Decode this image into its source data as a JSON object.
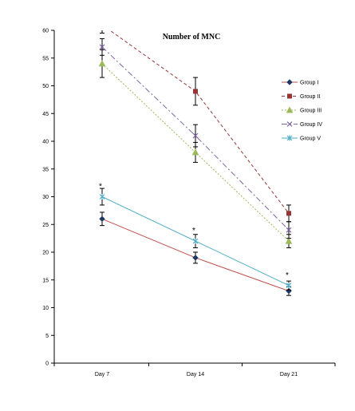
{
  "chart_data": {
    "type": "line",
    "title": "Number of MNC",
    "xlabel": "",
    "ylabel": "",
    "categories": [
      "Day 7",
      "Day 14",
      "Day 21"
    ],
    "ylim": [
      0,
      60
    ],
    "yticks": [
      0,
      5,
      10,
      15,
      20,
      25,
      30,
      35,
      40,
      45,
      50,
      55,
      60
    ],
    "grid": false,
    "legend_position": "right",
    "series": [
      {
        "name": "Group I",
        "values": [
          26,
          19,
          13
        ],
        "errors": [
          1.2,
          1.0,
          0.8
        ],
        "color": "#c0504d",
        "marker": "diamond",
        "dash": "solid"
      },
      {
        "name": "Group II",
        "values": [
          61,
          49,
          27
        ],
        "errors": [
          1.5,
          2.5,
          1.5
        ],
        "color": "#943634",
        "marker": "square",
        "dash": "dash"
      },
      {
        "name": "Group III",
        "values": [
          54,
          38,
          22
        ],
        "errors": [
          2.5,
          1.8,
          1.2
        ],
        "color": "#9bbb59",
        "marker": "triangle",
        "dash": "dot"
      },
      {
        "name": "Group IV",
        "values": [
          57,
          41,
          24
        ],
        "errors": [
          1.5,
          2.0,
          1.5
        ],
        "color": "#8064a2",
        "marker": "x",
        "dash": "dashdot"
      },
      {
        "name": "Group V",
        "values": [
          30,
          22,
          14
        ],
        "errors": [
          1.5,
          1.2,
          0.8
        ],
        "color": "#4bacc6",
        "marker": "star",
        "dash": "solid"
      }
    ],
    "annotations": [
      {
        "text": "*",
        "category": "Day 7",
        "y": 32
      },
      {
        "text": "*",
        "category": "Day 14",
        "y": 24
      },
      {
        "text": "*",
        "category": "Day 21",
        "y": 16
      }
    ]
  }
}
